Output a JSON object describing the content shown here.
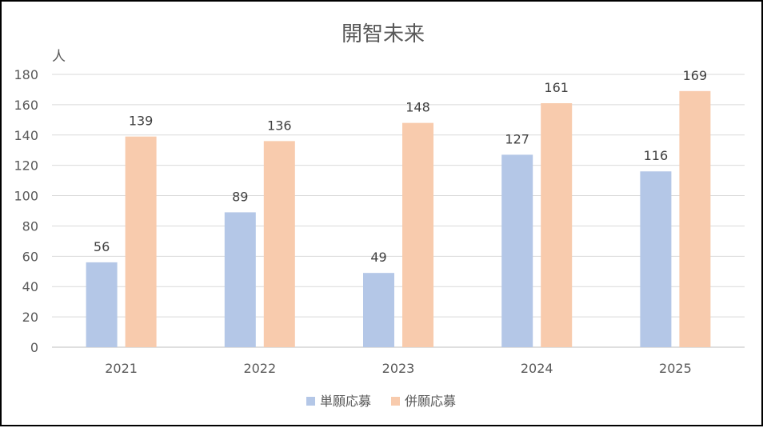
{
  "chart_data": {
    "type": "bar",
    "title": "開智未来",
    "ylabel": "人",
    "xlabel": "",
    "categories": [
      "2021",
      "2022",
      "2023",
      "2024",
      "2025"
    ],
    "series": [
      {
        "name": "単願応募",
        "values": [
          56,
          89,
          49,
          127,
          116
        ],
        "color": "#b4c7e7"
      },
      {
        "name": "併願応募",
        "values": [
          139,
          136,
          148,
          161,
          169
        ],
        "color": "#f8cbad"
      }
    ],
    "ylim": [
      0,
      180
    ],
    "yticks": [
      0,
      20,
      40,
      60,
      80,
      100,
      120,
      140,
      160,
      180
    ],
    "grid": true,
    "legend_position": "bottom",
    "data_labels": true
  }
}
